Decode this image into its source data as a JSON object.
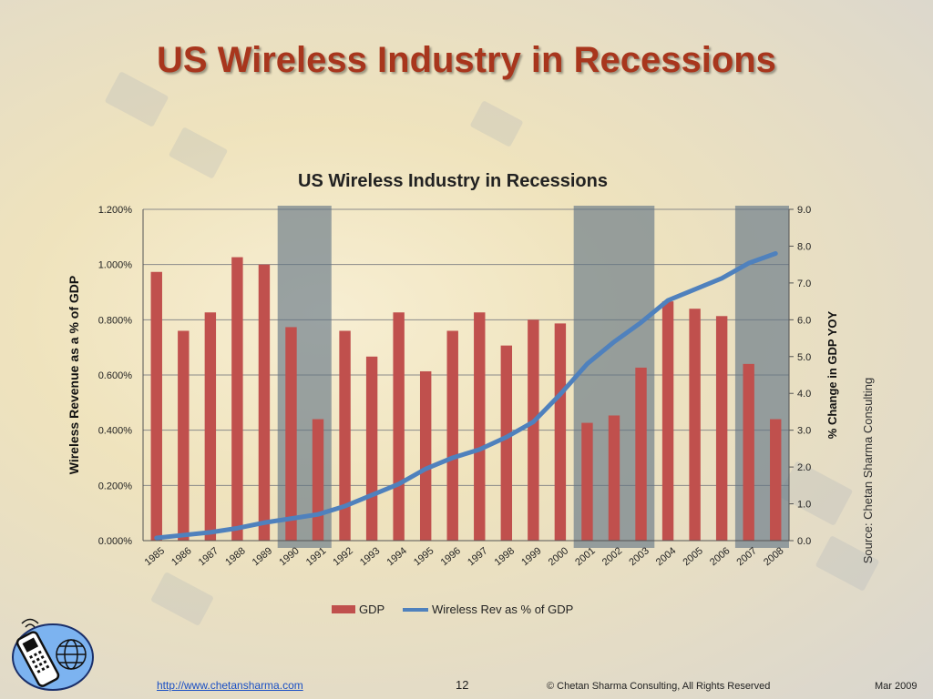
{
  "slide": {
    "title": "US Wireless Industry in Recessions",
    "footer_link": "http://www.chetansharma.com",
    "page_number": "12",
    "copyright": "© Chetan Sharma Consulting, All Rights Reserved",
    "date": "Mar 2009",
    "source_note": "Source: Chetan Sharma Consulting"
  },
  "colors": {
    "gdp_bar": "#c0504d",
    "wireless_line": "#4f81bd",
    "recession_band": "#5f7385",
    "title": "#a8361d"
  },
  "chart_data": {
    "type": "bar",
    "title": "US Wireless Industry in Recessions",
    "categories": [
      "1985",
      "1986",
      "1987",
      "1988",
      "1989",
      "1990",
      "1991",
      "1992",
      "1993",
      "1994",
      "1995",
      "1996",
      "1997",
      "1998",
      "1999",
      "2000",
      "2001",
      "2002",
      "2003",
      "2004",
      "2005",
      "2006",
      "2007",
      "2008"
    ],
    "ylabel_left": "Wireless Revenue as a % of GDP",
    "ylabel_right": "% Change in GDP YOY",
    "left_axis": {
      "min": 0,
      "max": 1.2,
      "ticks": [
        "0.000%",
        "0.200%",
        "0.400%",
        "0.600%",
        "0.800%",
        "1.000%",
        "1.200%"
      ]
    },
    "right_axis": {
      "min": 0,
      "max": 9,
      "ticks": [
        "0.0",
        "1.0",
        "2.0",
        "3.0",
        "4.0",
        "5.0",
        "6.0",
        "7.0",
        "8.0",
        "9.0"
      ]
    },
    "series": [
      {
        "name": "GDP",
        "type": "bar",
        "axis": "right",
        "values": [
          7.3,
          5.7,
          6.2,
          7.7,
          7.5,
          5.8,
          3.3,
          5.7,
          5.0,
          6.2,
          4.6,
          5.7,
          6.2,
          5.3,
          6.0,
          5.9,
          3.2,
          3.4,
          4.7,
          6.5,
          6.3,
          6.1,
          4.8,
          3.3
        ]
      },
      {
        "name": "Wireless Rev as % of GDP",
        "type": "line",
        "axis": "left",
        "values": [
          0.01,
          0.02,
          0.03,
          0.045,
          0.065,
          0.08,
          0.095,
          0.125,
          0.165,
          0.205,
          0.26,
          0.3,
          0.33,
          0.375,
          0.43,
          0.53,
          0.64,
          0.72,
          0.79,
          0.87,
          0.91,
          0.95,
          1.005,
          1.04
        ]
      }
    ],
    "recession_periods": [
      [
        "1990",
        "1991"
      ],
      [
        "2001",
        "2003"
      ],
      [
        "2007",
        "2008"
      ]
    ],
    "legend_position": "bottom",
    "grid": true
  }
}
